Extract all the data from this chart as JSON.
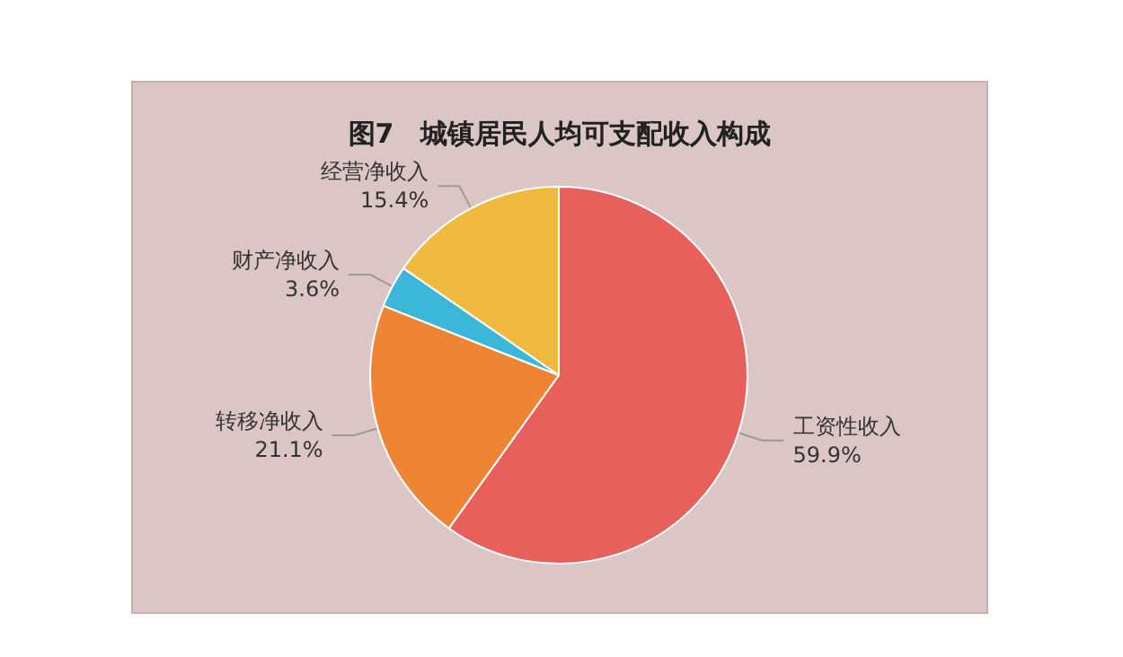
{
  "chart_data": {
    "type": "pie",
    "title": "图7　城镇居民人均可支配收入构成",
    "categories": [
      "工资性收入",
      "转移净收入",
      "财产净收入",
      "经营净收入"
    ],
    "values": [
      59.9,
      21.1,
      3.6,
      15.4
    ],
    "value_labels": [
      "59.9%",
      "21.1%",
      "3.6%",
      "15.4%"
    ],
    "colors": [
      "#e8605c",
      "#ee8535",
      "#3bb8d9",
      "#f0b940"
    ]
  }
}
